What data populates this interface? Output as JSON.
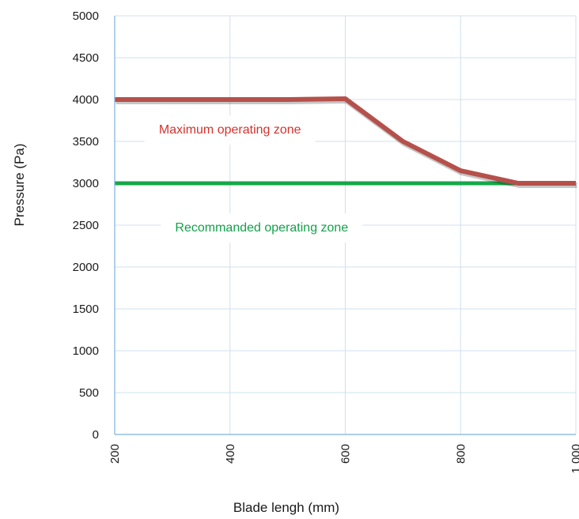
{
  "chart_data": {
    "type": "line",
    "title": "",
    "xlabel": "Blade lengh (mm)",
    "ylabel": "Pressure (Pa)",
    "xlim": [
      200,
      1000
    ],
    "ylim": [
      0,
      5000
    ],
    "x_ticks": [
      200,
      400,
      600,
      800,
      1000
    ],
    "x_tick_labels": [
      "200",
      "400",
      "600",
      "800",
      "1 000"
    ],
    "y_ticks": [
      0,
      500,
      1000,
      1500,
      2000,
      2500,
      3000,
      3500,
      4000,
      4500,
      5000
    ],
    "y_tick_labels": [
      "0",
      "500",
      "1000",
      "1500",
      "2000",
      "2500",
      "3000",
      "3500",
      "4000",
      "4500",
      "5000"
    ],
    "grid": true,
    "series": [
      {
        "color": "#b5504b",
        "x": [
          200,
          500,
          600,
          700,
          800,
          900,
          1000
        ],
        "y": [
          4000,
          4000,
          4010,
          3500,
          3150,
          3000,
          3000
        ]
      },
      {
        "color": "#16a84a",
        "x": [
          200,
          1000
        ],
        "y": [
          3000,
          3000
        ]
      }
    ],
    "annotations": [
      {
        "text": "Maximum operating zone",
        "x": 400,
        "y": 3650,
        "color": "#d2342e"
      },
      {
        "text": "Recommanded operating zone",
        "x": 455,
        "y": 2480,
        "color": "#12a14a"
      }
    ]
  }
}
